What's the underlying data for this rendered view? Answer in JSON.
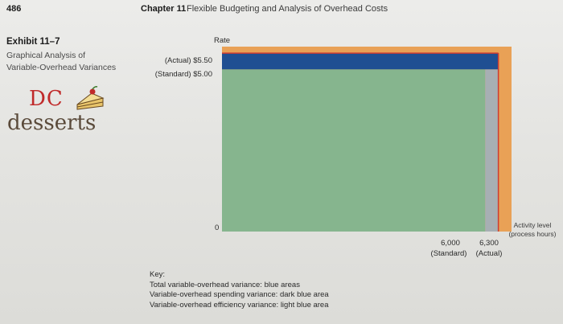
{
  "header": {
    "page_number": "486",
    "chapter_label": "Chapter 11",
    "chapter_title": "Flexible Budgeting and Analysis of Overhead Costs"
  },
  "exhibit": {
    "number": "Exhibit 11–7",
    "caption_line1": "Graphical Analysis of",
    "caption_line2": "Variable-Overhead Variances"
  },
  "logo": {
    "line1": "DC",
    "line2": "desserts"
  },
  "colors": {
    "light_blue": "#a7afb4",
    "dark_blue": "#1f4f92",
    "green": "#86b58e",
    "orange": "#e9a156",
    "red_line": "#cc3b32"
  },
  "chart_data": {
    "type": "area",
    "title": "",
    "ylabel": "Rate",
    "xlabel": "Activity level (process hours)",
    "origin_label": "0",
    "y_points": [
      {
        "label": "(Actual) $5.50",
        "value": 5.5
      },
      {
        "label": "(Standard) $5.00",
        "value": 5.0
      }
    ],
    "x_points": [
      {
        "value_label": "6,000",
        "sub_label": "(Standard)",
        "value": 6000
      },
      {
        "value_label": "6,300",
        "sub_label": "(Actual)",
        "value": 6300
      }
    ],
    "areas": [
      {
        "name": "Standard variable overhead",
        "x_range": [
          0,
          6000
        ],
        "y_range": [
          0,
          5.0
        ],
        "color_key": "green"
      },
      {
        "name": "Variable-overhead efficiency variance",
        "x_range": [
          6000,
          6300
        ],
        "y_range": [
          0,
          5.0
        ],
        "color_key": "light_blue"
      },
      {
        "name": "Variable-overhead spending variance",
        "x_range": [
          0,
          6300
        ],
        "y_range": [
          5.0,
          5.5
        ],
        "color_key": "dark_blue"
      }
    ],
    "xlim": [
      0,
      6600
    ],
    "ylim": [
      0,
      5.7
    ],
    "grid": false
  },
  "key": {
    "title": "Key:",
    "line1": "Total variable-overhead variance: blue areas",
    "line2": "Variable-overhead spending variance: dark blue area",
    "line3": "Variable-overhead efficiency variance: light blue area"
  }
}
